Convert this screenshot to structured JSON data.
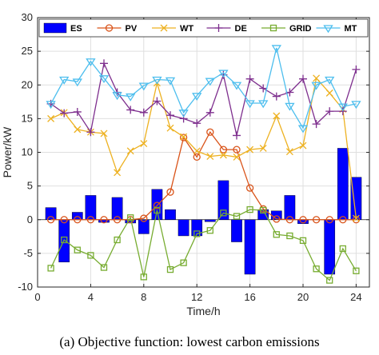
{
  "chart_data": {
    "type": "bar",
    "xlabel": "Time/h",
    "ylabel": "Power/kW",
    "xlim": [
      0,
      25
    ],
    "ylim": [
      -10,
      30
    ],
    "x_ticks": [
      0,
      4,
      8,
      12,
      16,
      20,
      24
    ],
    "y_ticks": [
      -10,
      -5,
      0,
      5,
      10,
      15,
      20,
      25,
      30
    ],
    "grid": true,
    "legend_position": "top",
    "x": [
      1,
      2,
      3,
      4,
      5,
      6,
      7,
      8,
      9,
      10,
      11,
      12,
      13,
      14,
      15,
      16,
      17,
      18,
      19,
      20,
      21,
      22,
      23,
      24
    ],
    "series": [
      {
        "name": "ES",
        "kind": "bar",
        "color": "#0000ff",
        "values": [
          1.8,
          -6.3,
          1.1,
          3.6,
          -0.4,
          3.3,
          -0.5,
          -2.1,
          4.5,
          1.5,
          -2.4,
          -2.4,
          -0.3,
          5.8,
          -3.3,
          -8.1,
          1.5,
          1.3,
          3.6,
          -0.6,
          0,
          -8.1,
          10.6,
          6.3
        ]
      },
      {
        "name": "PV",
        "kind": "line",
        "marker": "circle",
        "color": "#d95319",
        "values": [
          0,
          0,
          0,
          0,
          0,
          0,
          0,
          0.2,
          2.1,
          4.1,
          12.2,
          9.3,
          13.0,
          10.4,
          10.4,
          4.7,
          1.6,
          0.1,
          0,
          0,
          0,
          0,
          0,
          0
        ]
      },
      {
        "name": "WT",
        "kind": "line",
        "marker": "x",
        "color": "#edb120",
        "values": [
          15.0,
          15.9,
          13.4,
          13.0,
          12.8,
          7.0,
          10.2,
          11.3,
          20.3,
          13.6,
          12.3,
          10.2,
          9.4,
          9.6,
          9.3,
          10.4,
          10.6,
          15.4,
          10.1,
          11.0,
          21.0,
          18.8,
          16.4,
          0.2
        ]
      },
      {
        "name": "DE",
        "kind": "line",
        "marker": "plus",
        "color": "#7e2f8e",
        "values": [
          17.2,
          15.8,
          16.0,
          13.0,
          23.2,
          18.9,
          16.3,
          15.9,
          17.6,
          15.5,
          15.0,
          14.3,
          15.9,
          21.5,
          12.5,
          20.9,
          19.5,
          18.3,
          18.9,
          20.9,
          14.2,
          16.1,
          16.1,
          22.3
        ]
      },
      {
        "name": "GRID",
        "kind": "line",
        "marker": "square",
        "color": "#77ac30",
        "values": [
          -7.2,
          -3.0,
          -4.5,
          -5.3,
          -7.1,
          -3.0,
          0.3,
          -8.5,
          1.4,
          -7.4,
          -6.4,
          -2.1,
          -1.6,
          1.0,
          0.5,
          1.5,
          1.4,
          -2.2,
          -2.4,
          -3.1,
          -7.3,
          -9.0,
          -4.3,
          -7.6
        ]
      },
      {
        "name": "MT",
        "kind": "line",
        "marker": "triangle-down",
        "color": "#4dbeee",
        "values": [
          17.2,
          20.8,
          20.5,
          23.5,
          21.0,
          18.5,
          18.3,
          19.9,
          20.8,
          20.7,
          15.9,
          18.4,
          20.6,
          21.8,
          20.0,
          17.3,
          17.3,
          25.5,
          16.9,
          13.6,
          20.0,
          20.8,
          16.8,
          17.2
        ]
      }
    ]
  },
  "caption": "(a) Objective function: lowest carbon emissions"
}
